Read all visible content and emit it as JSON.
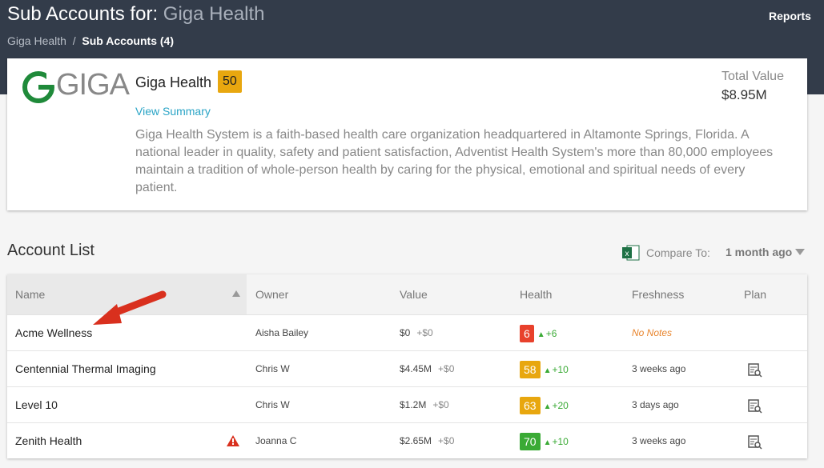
{
  "header": {
    "title_prefix": "Sub Accounts for:",
    "title_account": "Giga Health",
    "reports": "Reports",
    "breadcrumb": [
      "Giga Health",
      "Sub Accounts (4)"
    ]
  },
  "account": {
    "logo_text": "GIGA",
    "name": "Giga Health",
    "score": 50,
    "score_color": "#e8a70f",
    "view_summary": "View Summary",
    "description": "Giga Health System is a faith-based health care organization headquartered in Altamonte Springs, Florida. A national leader in quality, safety and patient satisfaction, Adventist Health System's more than 80,000 employees maintain a tradition of whole-person health by caring for the physical, emotional and spiritual needs of every patient.",
    "total_value_label": "Total Value",
    "total_value": "$8.95M"
  },
  "list": {
    "title": "Account List",
    "compare_label": "Compare To:",
    "compare_value": "1 month ago",
    "columns": [
      "Name",
      "Owner",
      "Value",
      "Health",
      "Freshness",
      "Plan"
    ],
    "rows": [
      {
        "name": "Acme Wellness",
        "warning": false,
        "owner": "Aisha Bailey",
        "value": "$0",
        "value_change": "+$0",
        "health": 6,
        "health_color": "#e8412c",
        "health_change": "+6",
        "freshness": "No Notes",
        "freshness_color": "#e8842c",
        "plan": false
      },
      {
        "name": "Centennial Thermal Imaging",
        "warning": false,
        "owner": "Chris W",
        "value": "$4.45M",
        "value_change": "+$0",
        "health": 58,
        "health_color": "#e8a70f",
        "health_change": "+10",
        "freshness": "3 weeks ago",
        "freshness_color": "#444444",
        "plan": true
      },
      {
        "name": "Level 10",
        "warning": false,
        "owner": "Chris W",
        "value": "$1.2M",
        "value_change": "+$0",
        "health": 63,
        "health_color": "#e8a70f",
        "health_change": "+20",
        "freshness": "3 days ago",
        "freshness_color": "#444444",
        "plan": true
      },
      {
        "name": "Zenith Health",
        "warning": true,
        "owner": "Joanna C",
        "value": "$2.65M",
        "value_change": "+$0",
        "health": 70,
        "health_color": "#3aaa35",
        "health_change": "+10",
        "freshness": "3 weeks ago",
        "freshness_color": "#444444",
        "plan": true
      }
    ]
  }
}
